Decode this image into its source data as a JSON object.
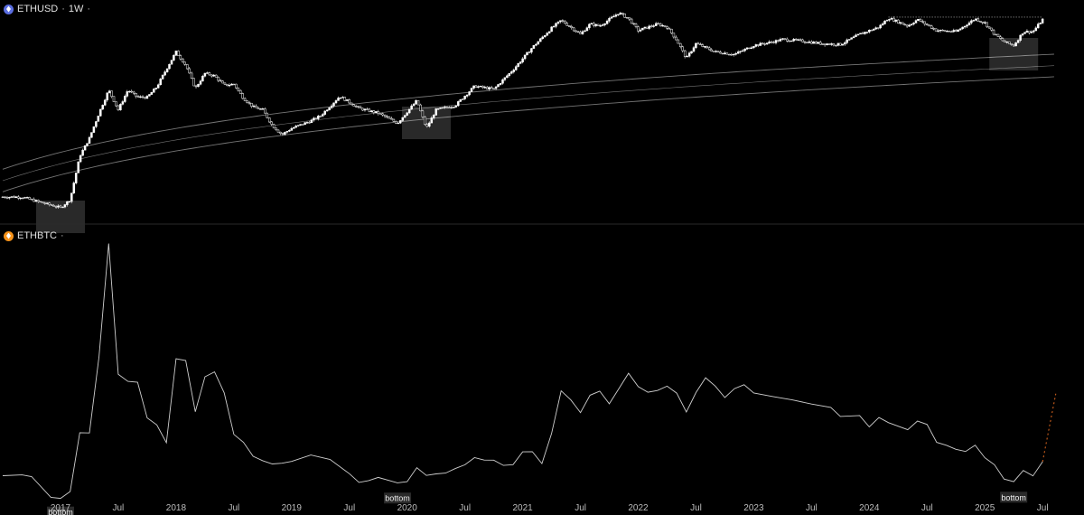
{
  "panes": {
    "top": {
      "symbol": "ETHUSD",
      "interval": "1W",
      "icon": "ethereum-icon",
      "separator": "·",
      "trail": "·"
    },
    "bottom": {
      "symbol": "ETHBTC",
      "icon": "ethereum-bitcoin-icon",
      "trail": "·"
    }
  },
  "colors": {
    "background": "#000000",
    "candle_up": "#ffffff",
    "candle_down": "#ffffff",
    "band": "#8a8a8a",
    "ratio_line": "#cfcfcf",
    "projection": "#e0671f",
    "divider": "#2a2a2a"
  },
  "chart_data": [
    {
      "type": "candlestick",
      "symbol": "ETHUSD",
      "interval": "1W",
      "scale": "log",
      "x_tick_labels": [
        "2017",
        "Jul",
        "2018",
        "Jul",
        "2019",
        "Jul",
        "2020",
        "Jul",
        "2021",
        "Jul",
        "2022",
        "Jul",
        "2023",
        "Jul",
        "2024",
        "Jul",
        "2025",
        "Jul"
      ],
      "x_range": [
        "2016-07",
        "2025-08"
      ],
      "y_range": [
        5,
        5500
      ],
      "approx_weekly_close": [
        [
          "2016-07",
          12
        ],
        [
          "2016-09",
          12
        ],
        [
          "2016-11",
          10
        ],
        [
          "2017-01",
          8.5
        ],
        [
          "2017-02",
          11
        ],
        [
          "2017-03",
          45
        ],
        [
          "2017-04",
          80
        ],
        [
          "2017-05",
          180
        ],
        [
          "2017-06",
          380
        ],
        [
          "2017-07",
          200
        ],
        [
          "2017-08",
          380
        ],
        [
          "2017-09",
          300
        ],
        [
          "2017-10",
          300
        ],
        [
          "2017-11",
          420
        ],
        [
          "2017-12",
          750
        ],
        [
          "2018-01",
          1300
        ],
        [
          "2018-02",
          850
        ],
        [
          "2018-03",
          400
        ],
        [
          "2018-04",
          650
        ],
        [
          "2018-05",
          600
        ],
        [
          "2018-06",
          440
        ],
        [
          "2018-07",
          460
        ],
        [
          "2018-08",
          290
        ],
        [
          "2018-09",
          220
        ],
        [
          "2018-10",
          200
        ],
        [
          "2018-11",
          120
        ],
        [
          "2018-12",
          90
        ],
        [
          "2019-01",
          110
        ],
        [
          "2019-03",
          140
        ],
        [
          "2019-04",
          165
        ],
        [
          "2019-06",
          310
        ],
        [
          "2019-08",
          210
        ],
        [
          "2019-10",
          180
        ],
        [
          "2019-12",
          130
        ],
        [
          "2020-02",
          270
        ],
        [
          "2020-03",
          110
        ],
        [
          "2020-04",
          200
        ],
        [
          "2020-06",
          230
        ],
        [
          "2020-08",
          430
        ],
        [
          "2020-10",
          390
        ],
        [
          "2020-12",
          730
        ],
        [
          "2021-02",
          1500
        ],
        [
          "2021-04",
          2800
        ],
        [
          "2021-05",
          3600
        ],
        [
          "2021-07",
          2300
        ],
        [
          "2021-08",
          3200
        ],
        [
          "2021-09",
          3000
        ],
        [
          "2021-11",
          4600
        ],
        [
          "2021-12",
          3800
        ],
        [
          "2022-01",
          2600
        ],
        [
          "2022-03",
          3200
        ],
        [
          "2022-04",
          2900
        ],
        [
          "2022-05",
          1900
        ],
        [
          "2022-06",
          1050
        ],
        [
          "2022-07",
          1700
        ],
        [
          "2022-09",
          1300
        ],
        [
          "2022-11",
          1200
        ],
        [
          "2023-01",
          1600
        ],
        [
          "2023-03",
          1800
        ],
        [
          "2023-04",
          1950
        ],
        [
          "2023-06",
          1850
        ],
        [
          "2023-08",
          1700
        ],
        [
          "2023-10",
          1650
        ],
        [
          "2023-12",
          2300
        ],
        [
          "2024-02",
          2900
        ],
        [
          "2024-03",
          3900
        ],
        [
          "2024-05",
          3000
        ],
        [
          "2024-06",
          3700
        ],
        [
          "2024-08",
          2600
        ],
        [
          "2024-10",
          2500
        ],
        [
          "2024-12",
          3800
        ],
        [
          "2025-01",
          3300
        ],
        [
          "2025-02",
          2300
        ],
        [
          "2025-03",
          1800
        ],
        [
          "2025-04",
          1600
        ],
        [
          "2025-05",
          2500
        ],
        [
          "2025-06",
          2500
        ],
        [
          "2025-07",
          3700
        ]
      ],
      "bands": "rising logarithmic regression band (three lines)",
      "highlighted_zones": [
        "2017-01",
        "2020-03",
        "2025-04"
      ],
      "resistance_line": {
        "from": "2024-03",
        "to": "2025-07",
        "style": "dotted",
        "value": 4000
      }
    },
    {
      "type": "line",
      "symbol": "ETHBTC",
      "x_tick_labels": [
        "2017",
        "Jul",
        "2018",
        "Jul",
        "2019",
        "Jul",
        "2020",
        "Jul",
        "2021",
        "Jul",
        "2022",
        "Jul",
        "2023",
        "Jul",
        "2024",
        "Jul",
        "2025",
        "Jul"
      ],
      "y_range": [
        0.015,
        0.16
      ],
      "points": [
        [
          "2016-07",
          0.022
        ],
        [
          "2016-09",
          0.021
        ],
        [
          "2016-10",
          0.02
        ],
        [
          "2016-12",
          0.01
        ],
        [
          "2017-01",
          0.0105
        ],
        [
          "2017-02",
          0.012
        ],
        [
          "2017-03",
          0.045
        ],
        [
          "2017-04",
          0.045
        ],
        [
          "2017-05",
          0.09
        ],
        [
          "2017-06",
          0.155
        ],
        [
          "2017-07",
          0.08
        ],
        [
          "2017-08",
          0.075
        ],
        [
          "2017-09",
          0.075
        ],
        [
          "2017-10",
          0.055
        ],
        [
          "2017-11",
          0.05
        ],
        [
          "2017-12",
          0.04
        ],
        [
          "2018-01",
          0.09
        ],
        [
          "2018-02",
          0.09
        ],
        [
          "2018-03",
          0.06
        ],
        [
          "2018-04",
          0.08
        ],
        [
          "2018-05",
          0.08
        ],
        [
          "2018-06",
          0.07
        ],
        [
          "2018-07",
          0.045
        ],
        [
          "2018-08",
          0.04
        ],
        [
          "2018-09",
          0.032
        ],
        [
          "2018-10",
          0.032
        ],
        [
          "2018-11",
          0.03
        ],
        [
          "2018-12",
          0.028
        ],
        [
          "2019-01",
          0.032
        ],
        [
          "2019-03",
          0.034
        ],
        [
          "2019-05",
          0.03
        ],
        [
          "2019-07",
          0.022
        ],
        [
          "2019-08",
          0.02
        ],
        [
          "2019-09",
          0.02
        ],
        [
          "2019-10",
          0.02
        ],
        [
          "2019-12",
          0.0185
        ],
        [
          "2020-01",
          0.018
        ],
        [
          "2020-02",
          0.027
        ],
        [
          "2020-03",
          0.021
        ],
        [
          "2020-04",
          0.024
        ],
        [
          "2020-05",
          0.025
        ],
        [
          "2020-06",
          0.025
        ],
        [
          "2020-07",
          0.028
        ],
        [
          "2020-08",
          0.033
        ],
        [
          "2020-09",
          0.03
        ],
        [
          "2020-10",
          0.029
        ],
        [
          "2020-11",
          0.028
        ],
        [
          "2020-12",
          0.03
        ],
        [
          "2021-01",
          0.034
        ],
        [
          "2021-02",
          0.034
        ],
        [
          "2021-03",
          0.03
        ],
        [
          "2021-04",
          0.045
        ],
        [
          "2021-05",
          0.072
        ],
        [
          "2021-06",
          0.065
        ],
        [
          "2021-07",
          0.06
        ],
        [
          "2021-08",
          0.068
        ],
        [
          "2021-09",
          0.07
        ],
        [
          "2021-10",
          0.065
        ],
        [
          "2021-11",
          0.072
        ],
        [
          "2021-12",
          0.08
        ],
        [
          "2022-01",
          0.074
        ],
        [
          "2022-02",
          0.07
        ],
        [
          "2022-03",
          0.072
        ],
        [
          "2022-04",
          0.075
        ],
        [
          "2022-05",
          0.068
        ],
        [
          "2022-06",
          0.058
        ],
        [
          "2022-07",
          0.068
        ],
        [
          "2022-08",
          0.08
        ],
        [
          "2022-09",
          0.074
        ],
        [
          "2022-10",
          0.068
        ],
        [
          "2022-11",
          0.072
        ],
        [
          "2022-12",
          0.073
        ],
        [
          "2023-01",
          0.07
        ],
        [
          "2023-03",
          0.067
        ],
        [
          "2023-05",
          0.066
        ],
        [
          "2023-07",
          0.062
        ],
        [
          "2023-09",
          0.06
        ],
        [
          "2023-10",
          0.056
        ],
        [
          "2023-12",
          0.055
        ],
        [
          "2024-01",
          0.05
        ],
        [
          "2024-02",
          0.055
        ],
        [
          "2024-03",
          0.054
        ],
        [
          "2024-05",
          0.05
        ],
        [
          "2024-06",
          0.055
        ],
        [
          "2024-07",
          0.05
        ],
        [
          "2024-08",
          0.043
        ],
        [
          "2024-09",
          0.04
        ],
        [
          "2024-10",
          0.037
        ],
        [
          "2024-11",
          0.035
        ],
        [
          "2024-12",
          0.038
        ],
        [
          "2025-01",
          0.032
        ],
        [
          "2025-02",
          0.028
        ],
        [
          "2025-03",
          0.022
        ],
        [
          "2025-04",
          0.019
        ],
        [
          "2025-05",
          0.023
        ],
        [
          "2025-06",
          0.023
        ],
        [
          "2025-07",
          0.03
        ]
      ],
      "projection": {
        "from": [
          "2025-07",
          0.03
        ],
        "to": [
          "2025-08",
          0.069
        ],
        "style": "dotted"
      },
      "annotations": [
        {
          "date": "2017-01",
          "value": 0.0105,
          "text": "bottom"
        },
        {
          "date": "2019-12",
          "value": 0.0185,
          "text": "bottom"
        },
        {
          "date": "2025-04",
          "value": 0.019,
          "text": "bottom"
        }
      ]
    }
  ]
}
